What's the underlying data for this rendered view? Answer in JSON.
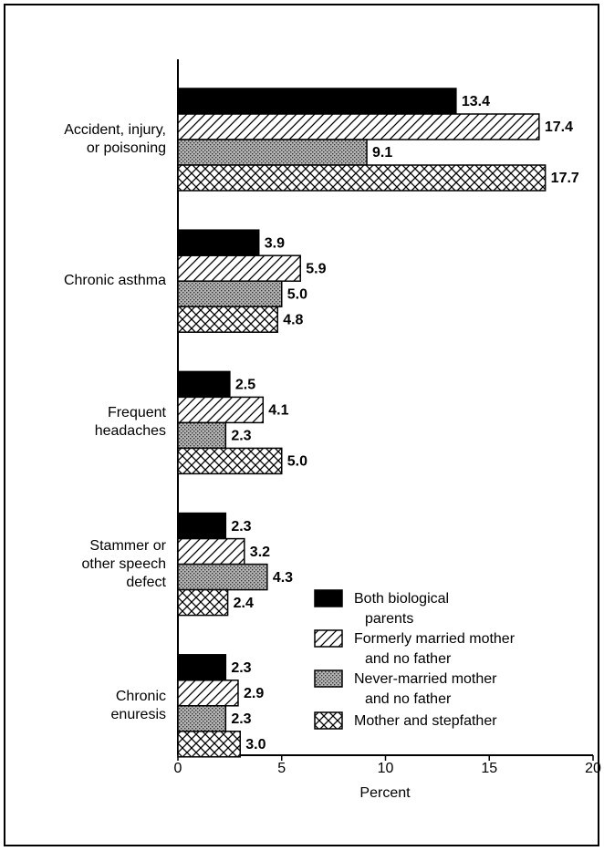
{
  "chart_data": {
    "type": "barh",
    "categories": [
      "Accident, injury,\nor poisoning",
      "Chronic asthma",
      "Frequent\nheadaches",
      "Stammer or\nother speech\ndefect",
      "Chronic\nenuresis"
    ],
    "series": [
      {
        "name": "Both biological\nparents",
        "color": "#000000",
        "pattern": "solid",
        "values": [
          13.4,
          3.9,
          2.5,
          2.3,
          2.3
        ],
        "value_labels": [
          "13.4",
          "3.9",
          "2.5",
          "2.3",
          "2.3"
        ]
      },
      {
        "name": "Formerly married mother\nand no father",
        "color": "#ffffff",
        "pattern": "hatch",
        "values": [
          17.4,
          5.9,
          4.1,
          3.2,
          2.9
        ],
        "value_labels": [
          "17.4",
          "5.9",
          "4.1",
          "3.2",
          "2.9"
        ]
      },
      {
        "name": "Never-married mother\nand no father",
        "color": "#b4b4b4",
        "pattern": "dots",
        "values": [
          9.1,
          5.0,
          2.3,
          4.3,
          2.3
        ],
        "value_labels": [
          "9.1",
          "5.0",
          "2.3",
          "4.3",
          "2.3"
        ]
      },
      {
        "name": "Mother and stepfather",
        "color": "#ffffff",
        "pattern": "crosshatch",
        "values": [
          17.7,
          4.8,
          5.0,
          2.4,
          3.0
        ],
        "value_labels": [
          "17.7",
          "4.8",
          "5.0",
          "2.4",
          "3.0"
        ]
      }
    ],
    "xlabel": "Percent",
    "xlim": [
      0,
      20
    ],
    "xticks": [
      0,
      5,
      10,
      15,
      20
    ]
  }
}
